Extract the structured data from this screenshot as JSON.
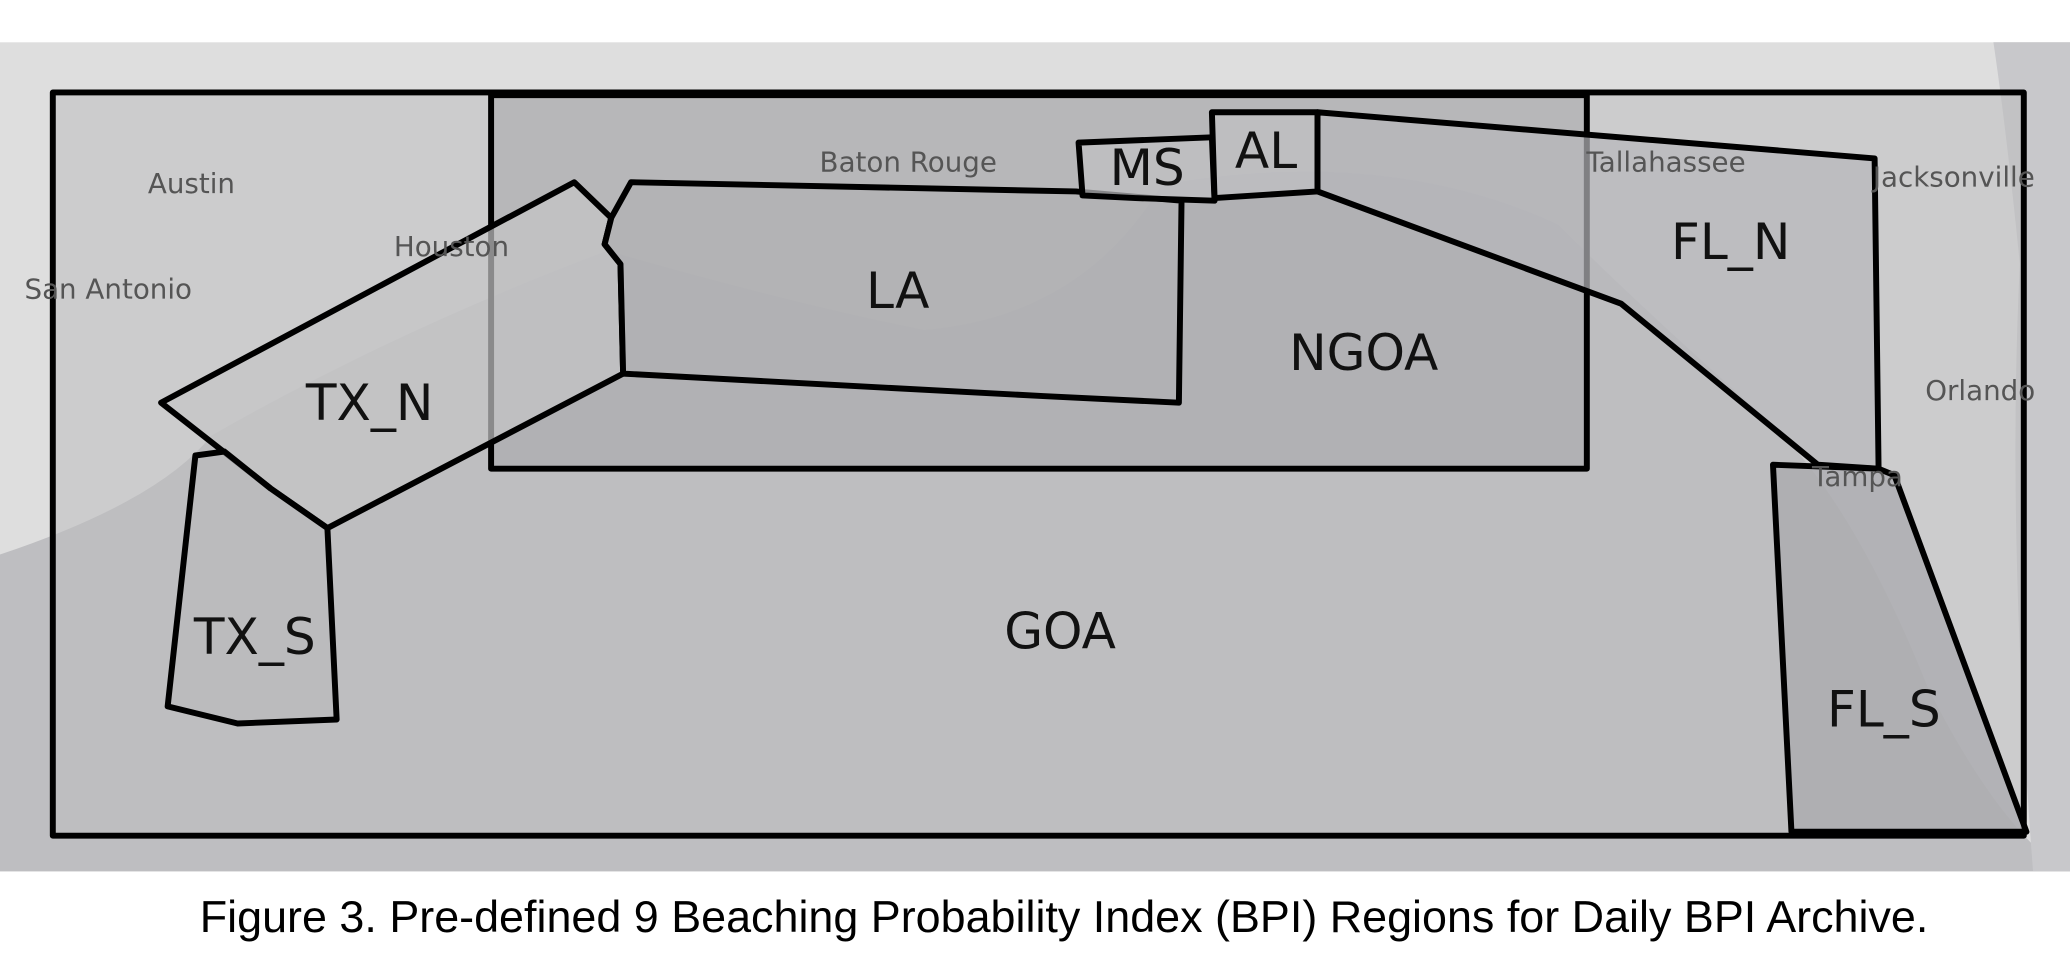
{
  "cities": [
    "Austin",
    "Houston",
    "San Antonio",
    "Baton Rouge",
    "Tallahassee",
    "Jacksonville",
    "Orlando",
    "Tampa"
  ],
  "regions": [
    "TX_N",
    "TX_S",
    "LA",
    "MS",
    "AL",
    "NGOA",
    "FL_N",
    "FL_S",
    "GOA"
  ],
  "caption": "Figure 3. Pre-defined 9 Beaching Probability Index (BPI) Regions for Daily BPI Archive."
}
